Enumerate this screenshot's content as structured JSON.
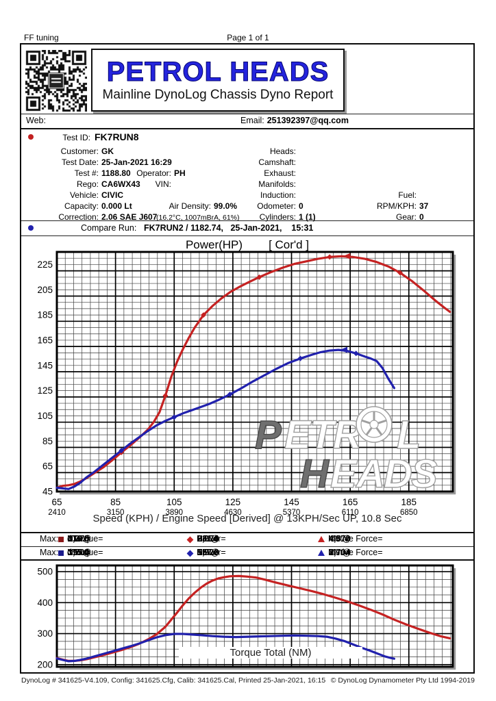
{
  "page": {
    "corner_left": "FF tuning",
    "corner_center": "Page 1 of 1"
  },
  "header": {
    "title": "PETROL HEADS",
    "subtitle": "Mainline DynoLog Chassis Dyno Report",
    "title_color": "#2424dd"
  },
  "contact": {
    "web_label": "Web:",
    "email_label": "Email:",
    "email": "251392397@qq.com"
  },
  "info": {
    "test_id_label": "Test ID:",
    "test_id": "FK7RUN8",
    "customer_label": "Customer:",
    "customer": "GK",
    "heads_label": "Heads:",
    "test_date_label": "Test Date:",
    "test_date": "25-Jan-2021 16:29",
    "camshaft_label": "Camshaft:",
    "test_no_label": "Test #:",
    "test_no": "1188.80",
    "operator_label": "Operator:",
    "operator": "PH",
    "exhaust_label": "Exhaust:",
    "rego_label": "Rego:",
    "rego": "CA6WX43",
    "vin_label": "VIN:",
    "manifolds_label": "Manifolds:",
    "vehicle_label": "Vehicle:",
    "vehicle": "CIVIC",
    "induction_label": "Induction:",
    "fuel_label": "Fuel:",
    "capacity_label": "Capacity:",
    "capacity": "0.000 Lt",
    "air_density_label": "Air Density:",
    "air_density": "99.0%",
    "odometer_label": "Odometer:",
    "odometer": "0",
    "rpmkph_label": "RPM/KPH:",
    "rpmkph": "37",
    "correction_label": "Correction:",
    "correction": "2.06 SAE J607",
    "correction_note": "(16.2°C, 1007mBrA, 61%)",
    "cylinders_label": "Cylinders:",
    "cylinders": "1 (1)",
    "gear_label": "Gear:",
    "gear": "0"
  },
  "compare": {
    "label": "Compare Run:",
    "value": "FK7RUN2 / 1182.74,   25-Jan-2021,    15:31"
  },
  "legend": {
    "row_label": "Max:",
    "rows": [
      {
        "color": "#c52222",
        "square_color": "#8b1a1a",
        "items": [
          {
            "icon": "square",
            "name": "dTorque= ",
            "v1": "319.5",
            "u1": "NM @",
            "v2": "4,370"
          },
          {
            "icon": "diamond",
            "name": "Power= ",
            "v1": "231.6",
            "u1": "HP @",
            "v2": "6,074"
          },
          {
            "icon": "triangle",
            "name": "Motive Force= ",
            "v1": "4.5",
            "u1": "KN @",
            "v2": "4,370"
          }
        ]
      },
      {
        "color": "#2121ad",
        "square_color": "#1a1a8b",
        "items": [
          {
            "icon": "square",
            "name": "dTorque= ",
            "v1": "195.9",
            "u1": "NM @",
            "v2": "3,704"
          },
          {
            "icon": "diamond",
            "name": "Power= ",
            "v1": "157.3",
            "u1": "HP @",
            "v2": "5,926"
          },
          {
            "icon": "triangle",
            "name": "Motive Force= ",
            "v1": "2.7",
            "u1": "KN @",
            "v2": "3,704"
          }
        ]
      }
    ]
  },
  "watermark": {
    "line1": "PETROL",
    "line2": "HEADS"
  },
  "footer": {
    "left": "DynoLog # 341625-V4.109, Config: 341625.Cfg, Calib: 341625.Cal, Printed 25-Jan-2021, 16:15",
    "right": "© DynoLog Dynamometer Pty Ltd 1994-2019"
  },
  "chart_data": [
    {
      "type": "line",
      "title": "Power(HP)",
      "title_suffix": "[ Cor'd ]",
      "xlabel": "Speed (KPH) / Engine Speed [Derived] @ 13KPH/Sec UP, 10.8 Sec",
      "xlim": [
        65,
        200
      ],
      "ylim": [
        45,
        235
      ],
      "x_major": 20,
      "x_minor": 2.857,
      "y_major": 20,
      "y_minor": 5,
      "x_ticks_kph": [
        65,
        85,
        105,
        125,
        145,
        165,
        185
      ],
      "x_ticks_rpm": [
        2410,
        3150,
        3890,
        4630,
        5370,
        6110,
        6850
      ],
      "y_ticks": [
        45,
        65,
        85,
        105,
        125,
        145,
        165,
        185,
        205,
        225
      ],
      "grid": true,
      "markers": true,
      "watermark": true,
      "series": [
        {
          "name": "Power FK7RUN8 Cor'd (HP)",
          "color": "#c52222",
          "x": [
            65,
            67,
            69,
            71,
            73,
            75,
            78,
            81,
            84,
            87,
            90,
            93,
            96,
            98,
            100,
            102,
            104,
            106,
            108,
            110,
            112,
            115,
            118,
            121,
            124,
            127,
            130,
            134,
            138,
            142,
            146,
            150,
            154,
            158,
            162,
            166,
            170,
            174,
            178,
            182,
            186,
            190,
            194,
            197,
            199
          ],
          "y": [
            48,
            49.5,
            50,
            51,
            53,
            55.5,
            60,
            64.5,
            70,
            76,
            81.5,
            87.5,
            94,
            100,
            108,
            121,
            136,
            148,
            158,
            167,
            175,
            185,
            192,
            198,
            203,
            207,
            210.5,
            215,
            219,
            222.5,
            225.5,
            227.5,
            229.5,
            231,
            231.6,
            231,
            229.5,
            227,
            223.5,
            218.5,
            212,
            204.5,
            196.5,
            191,
            187.5
          ]
        },
        {
          "name": "Power FK7RUN2 Cor'd (HP)",
          "color": "#2121ad",
          "x": [
            65,
            67,
            69,
            71,
            73,
            75,
            78,
            81,
            84,
            87,
            90,
            93,
            96,
            99,
            102,
            105,
            108,
            111,
            114,
            117,
            120,
            124,
            128,
            132,
            136,
            140,
            144,
            148,
            152,
            155,
            158,
            161,
            164,
            167,
            170,
            172,
            174,
            176,
            178,
            180
          ],
          "y": [
            48,
            47.5,
            47,
            49,
            52,
            56,
            61,
            66.5,
            72,
            77.5,
            83,
            88,
            93,
            97.5,
            101,
            104,
            107,
            109.5,
            112,
            114.5,
            117.5,
            122,
            127,
            132.5,
            137.5,
            142.5,
            147,
            150.5,
            153.5,
            155.5,
            156.8,
            157.3,
            156.5,
            154.5,
            152,
            150.5,
            148.5,
            143,
            134.5,
            127
          ]
        }
      ]
    },
    {
      "type": "line",
      "title": "Torque Total (NM)",
      "xlabel": "",
      "xlim": [
        65,
        200
      ],
      "ylim": [
        193,
        520
      ],
      "x_major": 20,
      "x_minor": 2.857,
      "y_major": 100,
      "y_minor": 25,
      "y_ticks": [
        200,
        300,
        400,
        500
      ],
      "grid": true,
      "markers": false,
      "watermark": false,
      "series": [
        {
          "name": "Torque Total FK7RUN8 (NM)",
          "color": "#c52222",
          "x": [
            65,
            67,
            69,
            71,
            73,
            75,
            78,
            81,
            84,
            87,
            90,
            93,
            96,
            99,
            102,
            104,
            106,
            108,
            110,
            112,
            114,
            116,
            118,
            120,
            122,
            124,
            127,
            130,
            133,
            136,
            140,
            144,
            148,
            152,
            156,
            160,
            164,
            168,
            172,
            176,
            180,
            184,
            188,
            192,
            196,
            199
          ],
          "y": [
            221,
            216,
            212,
            212,
            214,
            217,
            224,
            231,
            239,
            247,
            256,
            267,
            281,
            298,
            322,
            345,
            368,
            392,
            414,
            432,
            448,
            461,
            471,
            478,
            482,
            485,
            486,
            484,
            481,
            474,
            464,
            455,
            446,
            437,
            427,
            416,
            404,
            391,
            377,
            362,
            345,
            330,
            316,
            303,
            291,
            285
          ]
        },
        {
          "name": "Torque Total FK7RUN2 (NM)",
          "color": "#2121ad",
          "x": [
            65,
            67,
            69,
            71,
            73,
            75,
            78,
            81,
            84,
            87,
            90,
            93,
            96,
            99,
            102,
            105,
            108,
            111,
            114,
            118,
            122,
            126,
            130,
            134,
            138,
            142,
            146,
            150,
            154,
            157,
            160,
            163,
            166,
            169,
            172,
            175,
            177,
            179,
            180
          ],
          "y": [
            220,
            215,
            211,
            212,
            215,
            219,
            227,
            235,
            243,
            251,
            259,
            268,
            278,
            288,
            295,
            299,
            299,
            297,
            295,
            292,
            290,
            289,
            290,
            291,
            292,
            293,
            294,
            293,
            292,
            290,
            284,
            276,
            265,
            254,
            244,
            233,
            226,
            221,
            219
          ]
        }
      ]
    }
  ]
}
